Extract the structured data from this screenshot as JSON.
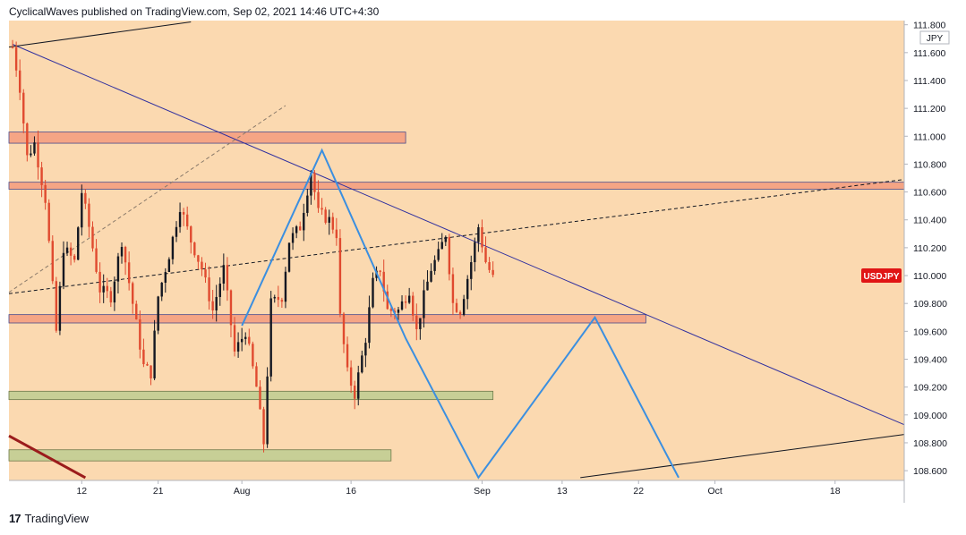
{
  "header": {
    "publisher_line": "CyclicalWaves published on TradingView.com, Sep 02, 2021 14:46 UTC+4:30"
  },
  "footer": {
    "logo_glyph": "17",
    "brand": "TradingView"
  },
  "colors": {
    "plot_bg": "#fbd9b0",
    "bull_candle": "#131722",
    "bear_candle": "#e04a2f",
    "resistance_zone": "#f5a585",
    "support_zone": "#c7cf96",
    "trendline": "#2f2f9f",
    "projection": "#3b8fe0",
    "symbol_tag": "#e01515"
  },
  "chart_data": {
    "type": "candlestick",
    "symbol": "USDJPY",
    "currency": "JPY",
    "last_price": "110.000",
    "ylim": [
      108.53,
      111.83
    ],
    "y_ticks": [
      "108.600",
      "108.800",
      "109.000",
      "109.200",
      "109.400",
      "109.600",
      "109.800",
      "110.000",
      "110.200",
      "110.400",
      "110.600",
      "110.800",
      "111.000",
      "111.200",
      "111.400",
      "111.600",
      "111.800"
    ],
    "x_ticks": [
      {
        "label": "12",
        "bar": 19
      },
      {
        "label": "21",
        "bar": 40
      },
      {
        "label": "Aug",
        "bar": 63
      },
      {
        "label": "16",
        "bar": 93
      },
      {
        "label": "Sep",
        "bar": 129
      },
      {
        "label": "13",
        "bar": 151
      },
      {
        "label": "22",
        "bar": 172
      },
      {
        "label": "Oct",
        "bar": 193
      },
      {
        "label": "18",
        "bar": 226
      }
    ],
    "bar_range": [
      -1,
      245
    ],
    "price_path": [
      [
        0,
        111.64
      ],
      [
        2,
        111.35
      ],
      [
        4,
        110.85
      ],
      [
        6,
        110.95
      ],
      [
        9,
        110.55
      ],
      [
        12,
        109.6
      ],
      [
        14,
        110.2
      ],
      [
        17,
        110.1
      ],
      [
        19,
        110.6
      ],
      [
        21,
        110.35
      ],
      [
        24,
        109.9
      ],
      [
        27,
        109.85
      ],
      [
        30,
        110.25
      ],
      [
        33,
        109.8
      ],
      [
        36,
        109.35
      ],
      [
        38,
        109.3
      ],
      [
        40,
        109.85
      ],
      [
        43,
        110.15
      ],
      [
        46,
        110.5
      ],
      [
        49,
        110.25
      ],
      [
        52,
        110.05
      ],
      [
        55,
        109.75
      ],
      [
        58,
        110.05
      ],
      [
        61,
        109.45
      ],
      [
        64,
        109.6
      ],
      [
        67,
        109.2
      ],
      [
        69,
        108.8
      ],
      [
        71,
        109.8
      ],
      [
        74,
        109.85
      ],
      [
        76,
        110.25
      ],
      [
        79,
        110.35
      ],
      [
        82,
        110.75
      ],
      [
        84,
        110.45
      ],
      [
        87,
        110.4
      ],
      [
        89,
        110.3
      ],
      [
        90,
        109.7
      ],
      [
        92,
        109.3
      ],
      [
        94,
        109.15
      ],
      [
        97,
        109.55
      ],
      [
        99,
        109.95
      ],
      [
        101,
        110.05
      ],
      [
        103,
        109.75
      ],
      [
        106,
        109.75
      ],
      [
        109,
        109.9
      ],
      [
        111,
        109.6
      ],
      [
        113,
        109.85
      ],
      [
        115,
        110.05
      ],
      [
        117,
        110.15
      ],
      [
        119,
        110.3
      ],
      [
        121,
        109.8
      ],
      [
        123,
        109.75
      ],
      [
        126,
        110.1
      ],
      [
        128,
        110.35
      ],
      [
        130,
        110.1
      ],
      [
        132,
        109.98
      ]
    ],
    "candle_count": 133,
    "zones": [
      {
        "type": "resistance",
        "bar_from": -1,
        "bar_to": 108,
        "price_top": 111.03,
        "price_bottom": 110.95
      },
      {
        "type": "resistance",
        "bar_from": -1,
        "bar_to": 245,
        "price_top": 110.67,
        "price_bottom": 110.62
      },
      {
        "type": "resistance",
        "bar_from": -1,
        "bar_to": 174,
        "price_top": 109.72,
        "price_bottom": 109.66
      },
      {
        "type": "support",
        "bar_from": -1,
        "bar_to": 132,
        "price_top": 109.17,
        "price_bottom": 109.11
      },
      {
        "type": "support",
        "bar_from": -1,
        "bar_to": 104,
        "price_top": 108.75,
        "price_bottom": 108.67
      }
    ],
    "trendlines": [
      {
        "style": "solid",
        "color": "trendline",
        "from": [
          0,
          111.66
        ],
        "to": [
          245,
          108.93
        ]
      },
      {
        "style": "dashed",
        "color": "bull_candle",
        "from": [
          -1,
          109.87
        ],
        "to": [
          245,
          110.69
        ]
      },
      {
        "style": "dashed",
        "color": "gray",
        "from": [
          -1,
          109.88
        ],
        "to": [
          75,
          111.22
        ]
      },
      {
        "style": "solid",
        "color": "bull_candle",
        "from": [
          -1,
          111.64
        ],
        "to": [
          49,
          111.82
        ]
      },
      {
        "style": "solid",
        "color": "bull_candle",
        "from": [
          156,
          108.55
        ],
        "to": [
          245,
          108.86
        ]
      },
      {
        "style": "thick",
        "color": "maroon",
        "from": [
          -1,
          108.85
        ],
        "to": [
          20,
          108.55
        ]
      }
    ],
    "projection_path": [
      [
        63,
        109.64
      ],
      [
        85,
        110.9
      ],
      [
        108,
        109.55
      ],
      [
        128,
        108.55
      ],
      [
        160,
        109.7
      ],
      [
        183,
        108.55
      ]
    ]
  }
}
